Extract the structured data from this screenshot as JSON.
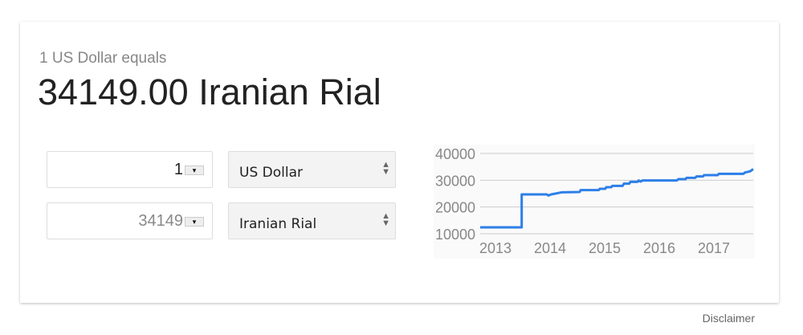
{
  "header": {
    "subtitle": "1 US Dollar equals",
    "result": "34149.00 Iranian Rial"
  },
  "converter": {
    "from": {
      "amount": "1",
      "currency": "US Dollar"
    },
    "to": {
      "amount": "34149",
      "currency": "Iranian Rial"
    }
  },
  "footer": {
    "disclaimer": "Disclaimer"
  },
  "chart_data": {
    "type": "line",
    "line_color": "#2d7fe8",
    "grid": true,
    "ylim": [
      10000,
      40000
    ],
    "yticks": [
      "10000",
      "20000",
      "30000",
      "40000"
    ],
    "xticks": [
      "2013",
      "2014",
      "2015",
      "2016",
      "2017"
    ],
    "xlim": [
      2012.78,
      2017.78
    ],
    "x": [
      2012.78,
      2013.54,
      2013.54,
      2014.0,
      2014.03,
      2014.08,
      2014.28,
      2014.6,
      2014.62,
      2014.95,
      2014.97,
      2015.07,
      2015.09,
      2015.18,
      2015.2,
      2015.39,
      2015.41,
      2015.51,
      2015.53,
      2015.66,
      2015.68,
      2015.72,
      2015.75,
      2016.38,
      2016.41,
      2016.54,
      2016.56,
      2016.72,
      2016.74,
      2016.86,
      2016.88,
      2017.13,
      2017.15,
      2017.6,
      2017.63,
      2017.72,
      2017.78
    ],
    "y": [
      12400,
      12400,
      24700,
      24700,
      24300,
      24700,
      25500,
      25600,
      26300,
      26300,
      26800,
      26800,
      27400,
      27400,
      27900,
      27900,
      28700,
      28700,
      29400,
      29400,
      29900,
      29500,
      29900,
      29900,
      30400,
      30400,
      30900,
      30900,
      31400,
      31400,
      31900,
      31900,
      32400,
      32400,
      32900,
      33300,
      34149
    ]
  }
}
